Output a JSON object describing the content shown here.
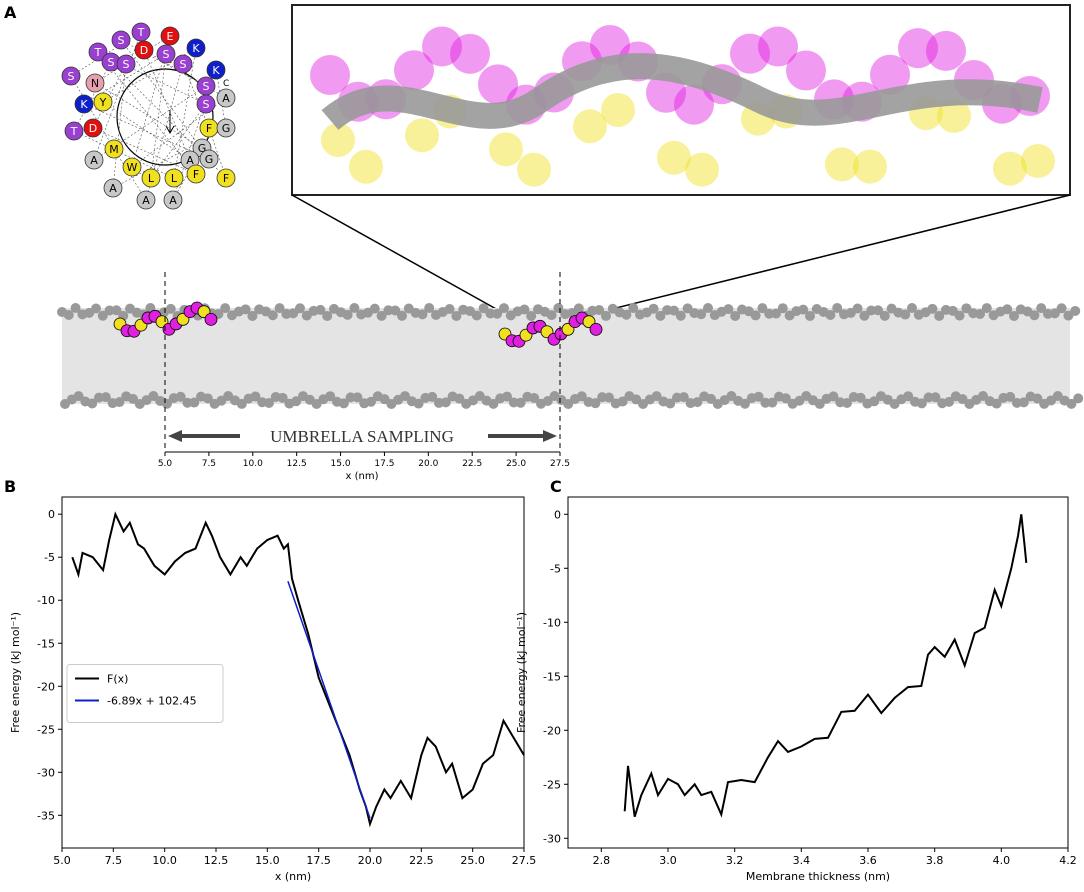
{
  "panels": {
    "a": "A",
    "b": "B",
    "c": "C"
  },
  "helical_wheel": {
    "residues": [
      {
        "letter": "T",
        "color": "#9a40d0"
      },
      {
        "letter": "E",
        "color": "#e01010"
      },
      {
        "letter": "S",
        "color": "#9a40d0"
      },
      {
        "letter": "D",
        "color": "#e01010"
      },
      {
        "letter": "S",
        "color": "#9a40d0"
      },
      {
        "letter": "K",
        "color": "#1020c8"
      },
      {
        "letter": "T",
        "color": "#9a40d0"
      },
      {
        "letter": "S",
        "color": "#9a40d0"
      },
      {
        "letter": "S",
        "color": "#9a40d0"
      },
      {
        "letter": "S",
        "color": "#9a40d0"
      },
      {
        "letter": "K",
        "color": "#1020c8"
      },
      {
        "letter": "S",
        "color": "#9a40d0"
      },
      {
        "letter": "N",
        "color": "#e8a0b0"
      },
      {
        "letter": "S",
        "color": "#9a40d0"
      },
      {
        "letter": "A",
        "color": "#c8c8c8"
      },
      {
        "letter": "K",
        "color": "#1020c8"
      },
      {
        "letter": "Y",
        "color": "#f0e020"
      },
      {
        "letter": "S",
        "color": "#9a40d0"
      },
      {
        "letter": "T",
        "color": "#9a40d0"
      },
      {
        "letter": "D",
        "color": "#e01010"
      },
      {
        "letter": "F",
        "color": "#f0e020"
      },
      {
        "letter": "G",
        "color": "#c8c8c8"
      },
      {
        "letter": "M",
        "color": "#f0e020"
      },
      {
        "letter": "G",
        "color": "#c8c8c8"
      },
      {
        "letter": "A",
        "color": "#c8c8c8"
      },
      {
        "letter": "W",
        "color": "#f0e020"
      },
      {
        "letter": "G",
        "color": "#c8c8c8"
      },
      {
        "letter": "A",
        "color": "#c8c8c8"
      },
      {
        "letter": "L",
        "color": "#f0e020"
      },
      {
        "letter": "L",
        "color": "#f0e020"
      },
      {
        "letter": "F",
        "color": "#f0e020"
      },
      {
        "letter": "F",
        "color": "#f0e020"
      },
      {
        "letter": "A",
        "color": "#c8c8c8"
      },
      {
        "letter": "A",
        "color": "#c8c8c8"
      },
      {
        "letter": "A",
        "color": "#c8c8c8"
      }
    ],
    "c_terminus": "C"
  },
  "membrane": {
    "label": "UMBRELLA SAMPLING",
    "xlabel": "x (nm)",
    "xlim": [
      5,
      27.5
    ],
    "xticks": [
      {
        "value": 5,
        "label": "5.0"
      },
      {
        "value": 7.5,
        "label": "7.5"
      },
      {
        "value": 10,
        "label": "10.0"
      },
      {
        "value": 12.5,
        "label": "12.5"
      },
      {
        "value": 15,
        "label": "15.0"
      },
      {
        "value": 17.5,
        "label": "17.5"
      },
      {
        "value": 20,
        "label": "20.0"
      },
      {
        "value": 22.5,
        "label": "22.5"
      },
      {
        "value": 25,
        "label": "25.0"
      },
      {
        "value": 27.5,
        "label": "27.5"
      }
    ]
  },
  "chart_data": [
    {
      "type": "line",
      "xlabel": "x (nm)",
      "ylabel": "Free energy (kJ mol⁻¹)",
      "xlim": [
        5,
        27.5
      ],
      "ylim": [
        -38.8,
        2
      ],
      "xticks": [
        {
          "value": 5,
          "label": "5.0"
        },
        {
          "value": 7.5,
          "label": "7.5"
        },
        {
          "value": 10,
          "label": "10.0"
        },
        {
          "value": 12.5,
          "label": "12.5"
        },
        {
          "value": 15,
          "label": "15.0"
        },
        {
          "value": 17.5,
          "label": "17.5"
        },
        {
          "value": 20,
          "label": "20.0"
        },
        {
          "value": 22.5,
          "label": "22.5"
        },
        {
          "value": 25,
          "label": "25.0"
        },
        {
          "value": 27.5,
          "label": "27.5"
        }
      ],
      "yticks": [
        0,
        -5,
        -10,
        -15,
        -20,
        -25,
        -30,
        -35
      ],
      "legend": "center left",
      "series": [
        {
          "name": "F(x)",
          "color": "#000000",
          "x": [
            5.5,
            5.8,
            6,
            6.5,
            7,
            7.3,
            7.6,
            8,
            8.3,
            8.7,
            9,
            9.5,
            10,
            10.5,
            11,
            11.5,
            12,
            12.3,
            12.7,
            13.2,
            13.7,
            14,
            14.5,
            15,
            15.5,
            15.8,
            16,
            16.2,
            16.5,
            17,
            17.5,
            18,
            18.5,
            19,
            19.5,
            19.8,
            20,
            20.3,
            20.7,
            21,
            21.5,
            22,
            22.5,
            22.8,
            23.2,
            23.7,
            24,
            24.5,
            25,
            25.5,
            26,
            26.5,
            27,
            27.5
          ],
          "values": [
            -5,
            -7,
            -4.5,
            -5,
            -6.5,
            -3,
            0,
            -2,
            -1,
            -3.5,
            -4,
            -6,
            -7,
            -5.5,
            -4.5,
            -4,
            -1,
            -2.5,
            -5,
            -7,
            -5,
            -6,
            -4,
            -3,
            -2.5,
            -4,
            -3.5,
            -7.5,
            -10,
            -14,
            -19,
            -22,
            -25,
            -28,
            -32,
            -34,
            -36,
            -34,
            -32,
            -33,
            -31,
            -33,
            -28,
            -26,
            -27,
            -30,
            -29,
            -33,
            -32,
            -29,
            -28,
            -24,
            -26,
            -28
          ]
        },
        {
          "name": "-6.89x + 102.45",
          "color": "#1020c8",
          "x": [
            16,
            20
          ],
          "values": [
            -7.79,
            -35.35
          ]
        }
      ]
    },
    {
      "type": "line",
      "xlabel": "Membrane thickness (nm)",
      "ylabel": "Free energy (kJ mol⁻¹)",
      "xlim": [
        2.7,
        4.2
      ],
      "ylim": [
        -30.9,
        1.6
      ],
      "xticks": [
        {
          "value": 2.8,
          "label": "2.8"
        },
        {
          "value": 3,
          "label": "3.0"
        },
        {
          "value": 3.2,
          "label": "3.2"
        },
        {
          "value": 3.4,
          "label": "3.4"
        },
        {
          "value": 3.6,
          "label": "3.6"
        },
        {
          "value": 3.8,
          "label": "3.8"
        },
        {
          "value": 4,
          "label": "4.0"
        },
        {
          "value": 4.2,
          "label": "4.2"
        }
      ],
      "yticks": [
        0,
        -5,
        -10,
        -15,
        -20,
        -25,
        -30
      ],
      "series": [
        {
          "color": "#000000",
          "x": [
            2.87,
            2.88,
            2.9,
            2.92,
            2.95,
            2.97,
            3.0,
            3.03,
            3.05,
            3.08,
            3.1,
            3.13,
            3.16,
            3.18,
            3.22,
            3.26,
            3.3,
            3.33,
            3.36,
            3.4,
            3.44,
            3.48,
            3.52,
            3.56,
            3.6,
            3.64,
            3.68,
            3.72,
            3.76,
            3.78,
            3.8,
            3.83,
            3.86,
            3.89,
            3.92,
            3.95,
            3.98,
            4.0,
            4.03,
            4.05,
            4.06,
            4.07,
            4.075
          ],
          "values": [
            -27.5,
            -23.3,
            -28,
            -26,
            -24,
            -26,
            -24.5,
            -25,
            -26,
            -25,
            -26,
            -25.7,
            -27.8,
            -24.8,
            -24.6,
            -24.8,
            -22.5,
            -21,
            -22,
            -21.5,
            -20.8,
            -20.7,
            -18.3,
            -18.2,
            -16.7,
            -18.4,
            -17,
            -16,
            -15.9,
            -13,
            -12.3,
            -13.2,
            -11.6,
            -14,
            -11,
            -10.5,
            -7,
            -8.5,
            -5,
            -2,
            0,
            -3,
            -4.5
          ]
        }
      ]
    }
  ]
}
